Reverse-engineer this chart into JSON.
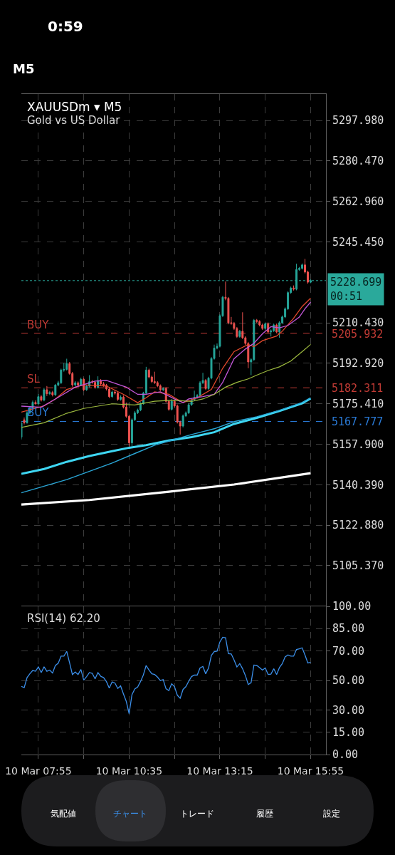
{
  "chart_data": [
    {
      "type": "candlestick",
      "title": "XAUUSDm ▾ M5",
      "subtitle": "Gold vs US Dollar",
      "x": [
        "--03-10T07:25",
        "--03-10T07:30",
        "--03-10T07:35",
        "--03-10T07:40",
        "--03-10T07:45",
        "--03-10T07:50",
        "--03-10T07:55",
        "--03-10T08:00",
        "--03-10T08:05",
        "--03-10T08:10",
        "--03-10T08:15",
        "--03-10T08:20",
        "--03-10T08:25",
        "--03-10T08:30",
        "--03-10T08:35",
        "--03-10T08:40",
        "--03-10T08:45",
        "--03-10T08:50",
        "--03-10T08:55",
        "--03-10T09:00",
        "--03-10T09:05",
        "--03-10T09:10",
        "--03-10T09:15",
        "--03-10T09:20",
        "--03-10T09:25",
        "--03-10T09:30",
        "--03-10T09:35",
        "--03-10T09:40",
        "--03-10T09:45",
        "--03-10T09:50",
        "--03-10T09:55",
        "--03-10T10:00",
        "--03-10T10:05",
        "--03-10T10:10",
        "--03-10T10:15",
        "--03-10T10:20",
        "--03-10T10:25",
        "--03-10T10:30",
        "--03-10T10:35",
        "--03-10T10:40",
        "--03-10T10:45",
        "--03-10T10:50",
        "--03-10T10:55",
        "--03-10T11:00",
        "--03-10T11:05",
        "--03-10T11:10",
        "--03-10T11:15",
        "--03-10T11:20",
        "--03-10T11:25",
        "--03-10T11:30",
        "--03-10T11:35",
        "--03-10T11:40",
        "--03-10T11:45",
        "--03-10T11:50",
        "--03-10T11:55",
        "--03-10T12:00",
        "--03-10T12:05",
        "--03-10T12:10",
        "--03-10T12:15",
        "--03-10T12:20",
        "--03-10T12:25",
        "--03-10T12:30",
        "--03-10T12:35",
        "--03-10T12:40",
        "--03-10T12:45",
        "--03-10T12:50",
        "--03-10T12:55",
        "--03-10T13:00",
        "--03-10T13:05",
        "--03-10T13:10",
        "--03-10T13:15",
        "--03-10T13:20",
        "--03-10T13:25",
        "--03-10T13:30",
        "--03-10T13:35",
        "--03-10T13:40",
        "--03-10T13:45",
        "--03-10T13:50",
        "--03-10T13:55",
        "--03-10T14:00",
        "--03-10T14:05",
        "--03-10T14:10",
        "--03-10T14:15",
        "--03-10T14:20",
        "--03-10T14:25",
        "--03-10T14:30",
        "--03-10T14:35",
        "--03-10T14:40",
        "--03-10T14:45",
        "--03-10T14:50",
        "--03-10T14:55",
        "--03-10T15:00",
        "--03-10T15:05",
        "--03-10T15:10",
        "--03-10T15:15",
        "--03-10T15:20",
        "--03-10T15:25",
        "--03-10T15:30",
        "--03-10T15:35",
        "--03-10T15:40",
        "--03-10T15:45",
        "--03-10T15:50",
        "--03-10T15:55"
      ],
      "ohlc": [
        [
          5161.0,
          5168.0,
          5160.0,
          5167.0
        ],
        [
          5168.5,
          5169.5,
          5166.5,
          5167.2
        ],
        [
          5167.2,
          5172.3,
          5166.8,
          5171.5
        ],
        [
          5171.5,
          5174.2,
          5170.9,
          5173.5
        ],
        [
          5173.5,
          5176.8,
          5173.0,
          5176.0
        ],
        [
          5176.0,
          5176.9,
          5175.0,
          5175.5
        ],
        [
          5175.5,
          5179.6,
          5175.0,
          5178.5
        ],
        [
          5178.5,
          5179.2,
          5176.4,
          5177.0
        ],
        [
          5177.0,
          5182.3,
          5176.5,
          5181.5
        ],
        [
          5181.5,
          5183.1,
          5178.8,
          5179.8
        ],
        [
          5179.8,
          5181.0,
          5179.2,
          5180.3
        ],
        [
          5180.3,
          5181.0,
          5178.6,
          5179.3
        ],
        [
          5179.3,
          5184.0,
          5178.8,
          5183.5
        ],
        [
          5183.5,
          5185.3,
          5183.0,
          5184.5
        ],
        [
          5184.5,
          5190.6,
          5184.0,
          5190.0
        ],
        [
          5190.0,
          5193.0,
          5189.3,
          5190.3
        ],
        [
          5190.3,
          5194.9,
          5189.8,
          5192.8
        ],
        [
          5192.8,
          5193.5,
          5188.0,
          5188.5
        ],
        [
          5188.5,
          5189.2,
          5182.8,
          5183.6
        ],
        [
          5183.6,
          5185.2,
          5183.0,
          5184.5
        ],
        [
          5184.5,
          5185.1,
          5182.9,
          5183.5
        ],
        [
          5183.5,
          5186.7,
          5183.0,
          5186.0
        ],
        [
          5186.0,
          5186.6,
          5180.9,
          5181.5
        ],
        [
          5181.5,
          5183.7,
          5181.0,
          5183.0
        ],
        [
          5183.0,
          5187.8,
          5182.5,
          5185.0
        ],
        [
          5185.0,
          5185.7,
          5184.1,
          5184.7
        ],
        [
          5184.7,
          5185.3,
          5181.9,
          5182.5
        ],
        [
          5182.5,
          5187.3,
          5182.0,
          5185.5
        ],
        [
          5185.5,
          5186.1,
          5183.4,
          5184.0
        ],
        [
          5184.0,
          5184.8,
          5182.8,
          5183.4
        ],
        [
          5183.4,
          5184.0,
          5181.2,
          5181.8
        ],
        [
          5181.8,
          5182.6,
          5177.9,
          5178.5
        ],
        [
          5178.5,
          5181.1,
          5178.0,
          5180.5
        ],
        [
          5180.5,
          5181.2,
          5179.4,
          5180.0
        ],
        [
          5180.0,
          5180.6,
          5176.7,
          5177.3
        ],
        [
          5177.3,
          5179.0,
          5176.8,
          5178.3
        ],
        [
          5178.3,
          5179.0,
          5173.4,
          5174.0
        ],
        [
          5174.0,
          5175.9,
          5169.4,
          5170.0
        ],
        [
          5170.0,
          5170.6,
          5156.9,
          5158.5
        ],
        [
          5158.5,
          5169.1,
          5157.0,
          5168.5
        ],
        [
          5168.5,
          5172.3,
          5168.0,
          5171.5
        ],
        [
          5171.5,
          5173.3,
          5171.0,
          5172.7
        ],
        [
          5172.7,
          5176.1,
          5172.2,
          5175.5
        ],
        [
          5175.5,
          5180.6,
          5175.0,
          5180.0
        ],
        [
          5180.0,
          5191.4,
          5179.5,
          5190.0
        ],
        [
          5190.0,
          5190.6,
          5186.4,
          5187.0
        ],
        [
          5187.0,
          5187.6,
          5184.4,
          5185.0
        ],
        [
          5185.0,
          5189.3,
          5184.0,
          5184.6
        ],
        [
          5184.6,
          5185.2,
          5182.6,
          5183.2
        ],
        [
          5183.2,
          5183.8,
          5180.9,
          5181.5
        ],
        [
          5181.5,
          5182.6,
          5180.9,
          5182.0
        ],
        [
          5182.0,
          5182.6,
          5175.9,
          5176.5
        ],
        [
          5176.5,
          5177.1,
          5172.4,
          5173.0
        ],
        [
          5173.0,
          5177.5,
          5172.5,
          5176.5
        ],
        [
          5176.5,
          5177.1,
          5173.9,
          5174.5
        ],
        [
          5174.5,
          5175.1,
          5166.9,
          5167.5
        ],
        [
          5167.5,
          5168.1,
          5162.1,
          5165.8
        ],
        [
          5165.8,
          5170.8,
          5165.2,
          5170.2
        ],
        [
          5170.2,
          5172.1,
          5169.7,
          5171.5
        ],
        [
          5171.5,
          5175.6,
          5171.0,
          5175.0
        ],
        [
          5175.0,
          5177.8,
          5174.5,
          5177.2
        ],
        [
          5177.2,
          5181.1,
          5176.7,
          5178.2
        ],
        [
          5178.2,
          5179.6,
          5177.7,
          5179.0
        ],
        [
          5179.0,
          5185.2,
          5178.5,
          5184.5
        ],
        [
          5184.5,
          5188.8,
          5184.0,
          5185.5
        ],
        [
          5185.5,
          5186.1,
          5181.4,
          5182.0
        ],
        [
          5182.0,
          5187.1,
          5181.5,
          5186.5
        ],
        [
          5186.5,
          5195.6,
          5186.0,
          5195.0
        ],
        [
          5195.0,
          5201.0,
          5194.5,
          5199.5
        ],
        [
          5199.5,
          5201.5,
          5199.0,
          5200.3
        ],
        [
          5200.3,
          5214.1,
          5199.8,
          5213.5
        ],
        [
          5213.5,
          5222.1,
          5213.0,
          5221.5
        ],
        [
          5221.5,
          5228.3,
          5220.2,
          5221.0
        ],
        [
          5221.0,
          5221.6,
          5209.8,
          5210.5
        ],
        [
          5210.5,
          5213.0,
          5209.6,
          5210.2
        ],
        [
          5210.2,
          5210.8,
          5207.4,
          5208.0
        ],
        [
          5208.0,
          5208.6,
          5203.9,
          5204.5
        ],
        [
          5204.5,
          5207.4,
          5204.0,
          5206.8
        ],
        [
          5206.8,
          5215.0,
          5203.4,
          5204.0
        ],
        [
          5204.0,
          5204.6,
          5200.9,
          5201.5
        ],
        [
          5201.5,
          5202.1,
          5190.8,
          5193.5
        ],
        [
          5193.5,
          5195.1,
          5187.8,
          5194.5
        ],
        [
          5194.5,
          5212.1,
          5194.0,
          5211.5
        ],
        [
          5211.5,
          5212.1,
          5210.4,
          5211.0
        ],
        [
          5211.0,
          5211.6,
          5208.9,
          5209.5
        ],
        [
          5209.5,
          5210.1,
          5207.4,
          5208.0
        ],
        [
          5208.0,
          5210.6,
          5207.5,
          5210.0
        ],
        [
          5210.0,
          5210.6,
          5205.9,
          5206.5
        ],
        [
          5206.5,
          5207.6,
          5204.5,
          5207.0
        ],
        [
          5207.0,
          5210.1,
          5206.5,
          5209.5
        ],
        [
          5209.5,
          5210.1,
          5205.9,
          5206.5
        ],
        [
          5206.5,
          5211.1,
          5204.0,
          5210.5
        ],
        [
          5210.5,
          5213.6,
          5210.0,
          5213.0
        ],
        [
          5213.0,
          5217.1,
          5212.5,
          5216.5
        ],
        [
          5216.5,
          5224.1,
          5216.0,
          5223.5
        ],
        [
          5223.5,
          5226.1,
          5223.0,
          5225.5
        ],
        [
          5225.5,
          5226.6,
          5224.4,
          5225.0
        ],
        [
          5225.0,
          5236.0,
          5224.5,
          5233.5
        ],
        [
          5233.5,
          5234.6,
          5233.0,
          5234.0
        ],
        [
          5234.0,
          5236.1,
          5233.5,
          5235.5
        ],
        [
          5235.5,
          5238.1,
          5231.8,
          5232.4
        ],
        [
          5232.4,
          5233.0,
          5227.4,
          5228.0
        ],
        [
          5228.0,
          5229.2,
          5227.6,
          5228.699
        ]
      ],
      "series": [
        {
          "type": "line",
          "color": "#e2482c",
          "x": [
            "--03-10T07:25",
            "--03-10T08:05",
            "--03-10T08:25",
            "--03-10T08:45",
            "--03-10T09:15",
            "--03-10T09:55",
            "--03-10T10:25",
            "--03-10T10:50",
            "--03-10T11:05",
            "--03-10T11:20",
            "--03-10T11:45",
            "--03-10T12:10",
            "--03-10T12:35",
            "--03-10T13:00",
            "--03-10T13:20",
            "--03-10T13:40",
            "--03-10T14:05",
            "--03-10T14:15",
            "--03-10T14:30",
            "--03-10T14:55",
            "--03-10T15:05",
            "--03-10T15:25",
            "--03-10T15:40",
            "--03-10T15:55"
          ],
          "values": [
            5171.8,
            5174.5,
            5177.5,
            5181.6,
            5183.6,
            5183.1,
            5179.5,
            5175.9,
            5178.0,
            5180.6,
            5179.5,
            5175.9,
            5178.0,
            5181.6,
            5190.8,
            5198.0,
            5201.1,
            5200.1,
            5202.7,
            5204.7,
            5206.8,
            5212.4,
            5217.5,
            5221.1
          ]
        },
        {
          "type": "line",
          "color": "#c156d8",
          "x": [
            "--03-10T07:25",
            "--03-10T08:00",
            "--03-10T08:25",
            "--03-10T09:00",
            "--03-10T09:35",
            "--03-10T09:55",
            "--03-10T10:30",
            "--03-10T10:50",
            "--03-10T11:05",
            "--03-10T11:30",
            "--03-10T11:55",
            "--03-10T12:10",
            "--03-10T12:20",
            "--03-10T12:45",
            "--03-10T13:05",
            "--03-10T13:20",
            "--03-10T13:40",
            "--03-10T14:00",
            "--03-10T14:15",
            "--03-10T14:30",
            "--03-10T14:45",
            "--03-10T15:00",
            "--03-10T15:15",
            "--03-10T15:35",
            "--03-10T15:45",
            "--03-10T15:55"
          ],
          "values": [
            5174.4,
            5173.9,
            5177.5,
            5182.6,
            5185.2,
            5185.5,
            5182.6,
            5179.5,
            5179.5,
            5180.6,
            5177.5,
            5175.9,
            5177.5,
            5178.5,
            5179.5,
            5184.7,
            5194.9,
            5199.1,
            5201.6,
            5205.7,
            5208.8,
            5208.3,
            5209.3,
            5212.9,
            5216.5,
            5219.4
          ]
        },
        {
          "type": "line",
          "color": "#9dba3f",
          "x": [
            "--03-10T07:25",
            "--03-10T08:05",
            "--03-10T08:45",
            "--03-10T09:15",
            "--03-10T10:05",
            "--03-10T10:45",
            "--03-10T11:20",
            "--03-10T11:55",
            "--03-10T12:25",
            "--03-10T12:45",
            "--03-10T13:05",
            "--03-10T13:25",
            "--03-10T13:45",
            "--03-10T14:05",
            "--03-10T14:20",
            "--03-10T14:40",
            "--03-10T15:00",
            "--03-10T15:20",
            "--03-10T15:40",
            "--03-10T15:55"
          ],
          "values": [
            5165.2,
            5167.2,
            5171.3,
            5173.4,
            5175.4,
            5174.9,
            5176.5,
            5177.0,
            5176.4,
            5177.5,
            5179.5,
            5182.6,
            5184.7,
            5186.2,
            5187.8,
            5189.8,
            5191.4,
            5193.9,
            5198.0,
            5201.1
          ]
        },
        {
          "type": "line",
          "color": "#3ed6f2",
          "x": [
            "--03-10T07:25",
            "--03-10T08:05",
            "--03-10T08:45",
            "--03-10T09:25",
            "--03-10T10:05",
            "--03-10T10:35",
            "--03-10T11:05",
            "--03-10T11:45",
            "--03-10T12:25",
            "--03-10T13:05",
            "--03-10T13:40",
            "--03-10T14:20",
            "--03-10T15:00",
            "--03-10T15:40",
            "--03-10T15:55"
          ],
          "values": [
            5145.1,
            5147.2,
            5150.3,
            5152.8,
            5154.9,
            5156.4,
            5157.5,
            5159.5,
            5161.0,
            5163.1,
            5166.7,
            5169.3,
            5172.3,
            5175.6,
            5177.7
          ]
        },
        {
          "type": "line",
          "color": "#2aa6d6",
          "x": [
            "--03-10T07:25",
            "--03-10T08:45",
            "--03-10T10:05",
            "--03-10T10:45",
            "--03-10T11:20",
            "--03-10T11:55",
            "--03-10T12:25",
            "--03-10T13:05",
            "--03-10T13:40",
            "--03-10T14:20",
            "--03-10T15:00",
            "--03-10T15:40",
            "--03-10T15:55"
          ],
          "values": [
            5136.9,
            5142.6,
            5149.8,
            5153.9,
            5157.5,
            5160.0,
            5162.1,
            5164.6,
            5167.7,
            5169.8,
            5172.6,
            5176.0,
            5178.0
          ]
        },
        {
          "type": "line",
          "color": "#ffffff",
          "x": [
            "--03-10T07:25",
            "--03-10T09:25",
            "--03-10T11:45",
            "--03-10T13:40",
            "--03-10T15:55"
          ],
          "values": [
            5131.8,
            5133.8,
            5137.4,
            5140.5,
            5145.4
          ]
        }
      ],
      "xlim": [
        "--03-10T07:25",
        "--03-10T16:22"
      ],
      "xticks": [
        {
          "value": "--03-10T07:55",
          "label": null
        },
        {
          "value": "--03-10T09:15",
          "label": null
        },
        {
          "value": "--03-10T10:35",
          "label": null
        },
        {
          "value": "--03-10T11:55",
          "label": null
        },
        {
          "value": "--03-10T13:15",
          "label": null
        },
        {
          "value": "--03-10T14:35",
          "label": null
        },
        {
          "value": "--03-10T15:55",
          "label": null
        }
      ],
      "ylim": [
        5088.1,
        5309.4
      ],
      "yticks": [
        {
          "value": 5297.98,
          "label": "5297.980"
        },
        {
          "value": 5280.47,
          "label": "5280.470"
        },
        {
          "value": 5262.96,
          "label": "5262.960"
        },
        {
          "value": 5245.45,
          "label": "5245.450"
        },
        {
          "value": 5210.43,
          "label": "5210.430"
        },
        {
          "value": 5192.92,
          "label": "5192.920"
        },
        {
          "value": 5175.41,
          "label": "5175.410"
        },
        {
          "value": 5157.9,
          "label": "5157.900"
        },
        {
          "value": 5140.39,
          "label": "5140.390"
        },
        {
          "value": 5122.88,
          "label": "5122.880"
        },
        {
          "value": 5105.37,
          "label": "5105.370"
        }
      ],
      "tick_labels": "y",
      "grid": true,
      "ref_lines": [
        {
          "axis": "y",
          "value": 5228.699,
          "label": "5228.699\n00:51",
          "color": "#2aa99b",
          "line_style": "dotted"
        },
        {
          "axis": "y",
          "value": 5205.932,
          "label": "5205.932",
          "color": "#c23b35",
          "line_style": "dashed"
        },
        {
          "axis": "y",
          "value": 5182.311,
          "label": "5182.311",
          "color": "#c23b35",
          "line_style": "dashed"
        },
        {
          "axis": "y",
          "value": 5167.777,
          "label": "5167.777",
          "color": "#2a7ad6",
          "line_style": "dashed"
        }
      ],
      "annotations": [
        "0:59",
        "M5",
        {
          "text": "BUY",
          "y": 5205.932
        },
        {
          "text": "SL",
          "y": 5182.311
        },
        {
          "text": "BUY",
          "y": 5167.777
        },
        "気配値",
        "チャート",
        "トレード",
        "履歴",
        "設定"
      ]
    },
    {
      "type": "line",
      "title": "RSI(14) 62.20",
      "x": [
        "--03-10T07:25",
        "--03-10T07:30",
        "--03-10T07:35",
        "--03-10T07:40",
        "--03-10T07:45",
        "--03-10T07:50",
        "--03-10T07:55",
        "--03-10T08:00",
        "--03-10T08:05",
        "--03-10T08:10",
        "--03-10T08:15",
        "--03-10T08:20",
        "--03-10T08:25",
        "--03-10T08:30",
        "--03-10T08:35",
        "--03-10T08:40",
        "--03-10T08:45",
        "--03-10T08:50",
        "--03-10T08:55",
        "--03-10T09:00",
        "--03-10T09:05",
        "--03-10T09:10",
        "--03-10T09:15",
        "--03-10T09:20",
        "--03-10T09:25",
        "--03-10T09:30",
        "--03-10T09:35",
        "--03-10T09:40",
        "--03-10T09:45",
        "--03-10T09:50",
        "--03-10T09:55",
        "--03-10T10:00",
        "--03-10T10:05",
        "--03-10T10:10",
        "--03-10T10:15",
        "--03-10T10:20",
        "--03-10T10:25",
        "--03-10T10:30",
        "--03-10T10:35",
        "--03-10T10:40",
        "--03-10T10:45",
        "--03-10T10:50",
        "--03-10T10:55",
        "--03-10T11:00",
        "--03-10T11:05",
        "--03-10T11:10",
        "--03-10T11:15",
        "--03-10T11:20",
        "--03-10T11:25",
        "--03-10T11:30",
        "--03-10T11:35",
        "--03-10T11:40",
        "--03-10T11:45",
        "--03-10T11:50",
        "--03-10T11:55",
        "--03-10T12:00",
        "--03-10T12:05",
        "--03-10T12:10",
        "--03-10T12:15",
        "--03-10T12:20",
        "--03-10T12:25",
        "--03-10T12:30",
        "--03-10T12:35",
        "--03-10T12:40",
        "--03-10T12:45",
        "--03-10T12:50",
        "--03-10T12:55",
        "--03-10T13:00",
        "--03-10T13:05",
        "--03-10T13:10",
        "--03-10T13:15",
        "--03-10T13:20",
        "--03-10T13:25",
        "--03-10T13:30",
        "--03-10T13:35",
        "--03-10T13:40",
        "--03-10T13:45",
        "--03-10T13:50",
        "--03-10T13:55",
        "--03-10T14:00",
        "--03-10T14:05",
        "--03-10T14:10",
        "--03-10T14:15",
        "--03-10T14:20",
        "--03-10T14:25",
        "--03-10T14:30",
        "--03-10T14:35",
        "--03-10T14:40",
        "--03-10T14:45",
        "--03-10T14:50",
        "--03-10T14:55",
        "--03-10T15:00",
        "--03-10T15:05",
        "--03-10T15:10",
        "--03-10T15:15",
        "--03-10T15:20",
        "--03-10T15:25",
        "--03-10T15:30",
        "--03-10T15:35",
        "--03-10T15:40",
        "--03-10T15:45",
        "--03-10T15:50",
        "--03-10T15:55"
      ],
      "series": [
        {
          "color": "#3b8ee8",
          "values": [
            46.0,
            45.1,
            51.9,
            54.5,
            56.7,
            56.2,
            59.1,
            55.3,
            59.2,
            56.2,
            57.0,
            55.0,
            60.1,
            61.6,
            66.4,
            66.4,
            69.6,
            62.0,
            54.0,
            55.7,
            54.0,
            57.4,
            50.2,
            52.6,
            55.3,
            54.8,
            51.1,
            55.3,
            52.8,
            51.9,
            49.2,
            44.8,
            49.0,
            48.2,
            44.6,
            46.3,
            40.9,
            35.8,
            27.6,
            40.4,
            44.3,
            45.5,
            49.2,
            53.6,
            60.1,
            57.0,
            54.5,
            54.0,
            52.3,
            49.9,
            50.6,
            44.4,
            43.1,
            47.8,
            45.8,
            40.0,
            38.0,
            43.9,
            45.8,
            49.4,
            52.6,
            53.6,
            53.6,
            58.4,
            59.4,
            54.5,
            58.4,
            66.9,
            69.4,
            69.8,
            76.0,
            79.1,
            78.8,
            68.1,
            67.9,
            63.8,
            59.1,
            61.4,
            57.9,
            53.3,
            47.2,
            48.5,
            60.4,
            60.1,
            58.7,
            57.0,
            58.4,
            54.1,
            54.3,
            57.9,
            54.0,
            58.7,
            61.3,
            65.9,
            67.2,
            66.4,
            66.4,
            70.9,
            71.3,
            72.0,
            67.2,
            61.8,
            62.2
          ]
        }
      ],
      "xlim": [
        "--03-10T07:25",
        "--03-10T16:22"
      ],
      "xticks": [
        {
          "value": "--03-10T07:55",
          "label": "10 Mar 07:55"
        },
        {
          "value": "--03-10T09:15",
          "label": null
        },
        {
          "value": "--03-10T10:35",
          "label": "10 Mar 10:35"
        },
        {
          "value": "--03-10T11:55",
          "label": null
        },
        {
          "value": "--03-10T13:15",
          "label": "10 Mar 13:15"
        },
        {
          "value": "--03-10T14:35",
          "label": null
        },
        {
          "value": "--03-10T15:55",
          "label": "10 Mar 15:55"
        }
      ],
      "ylim": [
        0,
        100
      ],
      "yticks": [
        {
          "value": 100,
          "label": "100.00"
        },
        {
          "value": 85,
          "label": "85.00"
        },
        {
          "value": 70,
          "label": "70.00"
        },
        {
          "value": 50,
          "label": "50.00"
        },
        {
          "value": 30,
          "label": "30.00"
        },
        {
          "value": 15,
          "label": "15.00"
        },
        {
          "value": 0,
          "label": "0.00"
        }
      ],
      "grid": true
    }
  ]
}
